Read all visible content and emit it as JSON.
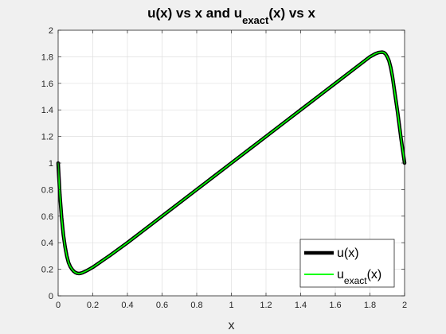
{
  "chart_data": {
    "type": "line",
    "title": {
      "text": "u(x) vs x and u",
      "subscript": "exact",
      "suffix": "(x) vs x"
    },
    "xlabel": "x",
    "ylabel": "",
    "xlim": [
      0,
      2
    ],
    "ylim": [
      0,
      2
    ],
    "xticks": [
      0,
      0.2,
      0.4,
      0.6,
      0.8,
      1,
      1.2,
      1.4,
      1.6,
      1.8,
      2
    ],
    "yticks": [
      0,
      0.2,
      0.4,
      0.6,
      0.8,
      1,
      1.2,
      1.4,
      1.6,
      1.8,
      2
    ],
    "grid": true,
    "legend_position": "bottom-right",
    "x": [
      0,
      0.01,
      0.02,
      0.03,
      0.04,
      0.05,
      0.06,
      0.07,
      0.08,
      0.09,
      0.1,
      0.11,
      0.12,
      0.13,
      0.14,
      0.16,
      0.18,
      0.2,
      0.25,
      0.3,
      0.4,
      0.5,
      0.6,
      0.7,
      0.8,
      0.9,
      1.0,
      1.1,
      1.2,
      1.3,
      1.4,
      1.5,
      1.6,
      1.7,
      1.75,
      1.8,
      1.83,
      1.85,
      1.87,
      1.88,
      1.89,
      1.9,
      1.91,
      1.92,
      1.93,
      1.94,
      1.95,
      1.96,
      1.97,
      1.98,
      1.99,
      2.0
    ],
    "series": [
      {
        "name": "u(x)",
        "name_base": "u(x)",
        "name_sub": "",
        "name_suffix": "",
        "color": "#000000",
        "width": 4.5,
        "values": [
          1.0,
          0.76,
          0.59,
          0.46,
          0.37,
          0.3,
          0.25,
          0.22,
          0.2,
          0.185,
          0.175,
          0.17,
          0.168,
          0.17,
          0.174,
          0.186,
          0.2,
          0.215,
          0.26,
          0.305,
          0.4,
          0.5,
          0.6,
          0.7,
          0.8,
          0.9,
          1.0,
          1.1,
          1.2,
          1.3,
          1.4,
          1.5,
          1.6,
          1.7,
          1.75,
          1.8,
          1.822,
          1.832,
          1.835,
          1.832,
          1.822,
          1.8,
          1.77,
          1.72,
          1.65,
          1.56,
          1.47,
          1.38,
          1.28,
          1.18,
          1.09,
          1.0
        ]
      },
      {
        "name": "u_exact(x)",
        "name_base": "u",
        "name_sub": "exact",
        "name_suffix": "(x)",
        "color": "#00ff00",
        "width": 1.6,
        "values": [
          1.0,
          0.76,
          0.59,
          0.46,
          0.37,
          0.3,
          0.25,
          0.22,
          0.2,
          0.185,
          0.175,
          0.17,
          0.168,
          0.17,
          0.174,
          0.186,
          0.2,
          0.215,
          0.26,
          0.305,
          0.4,
          0.5,
          0.6,
          0.7,
          0.8,
          0.9,
          1.0,
          1.1,
          1.2,
          1.3,
          1.4,
          1.5,
          1.6,
          1.7,
          1.75,
          1.8,
          1.822,
          1.832,
          1.835,
          1.832,
          1.822,
          1.8,
          1.77,
          1.72,
          1.65,
          1.56,
          1.47,
          1.38,
          1.28,
          1.18,
          1.09,
          1.0
        ]
      }
    ]
  }
}
